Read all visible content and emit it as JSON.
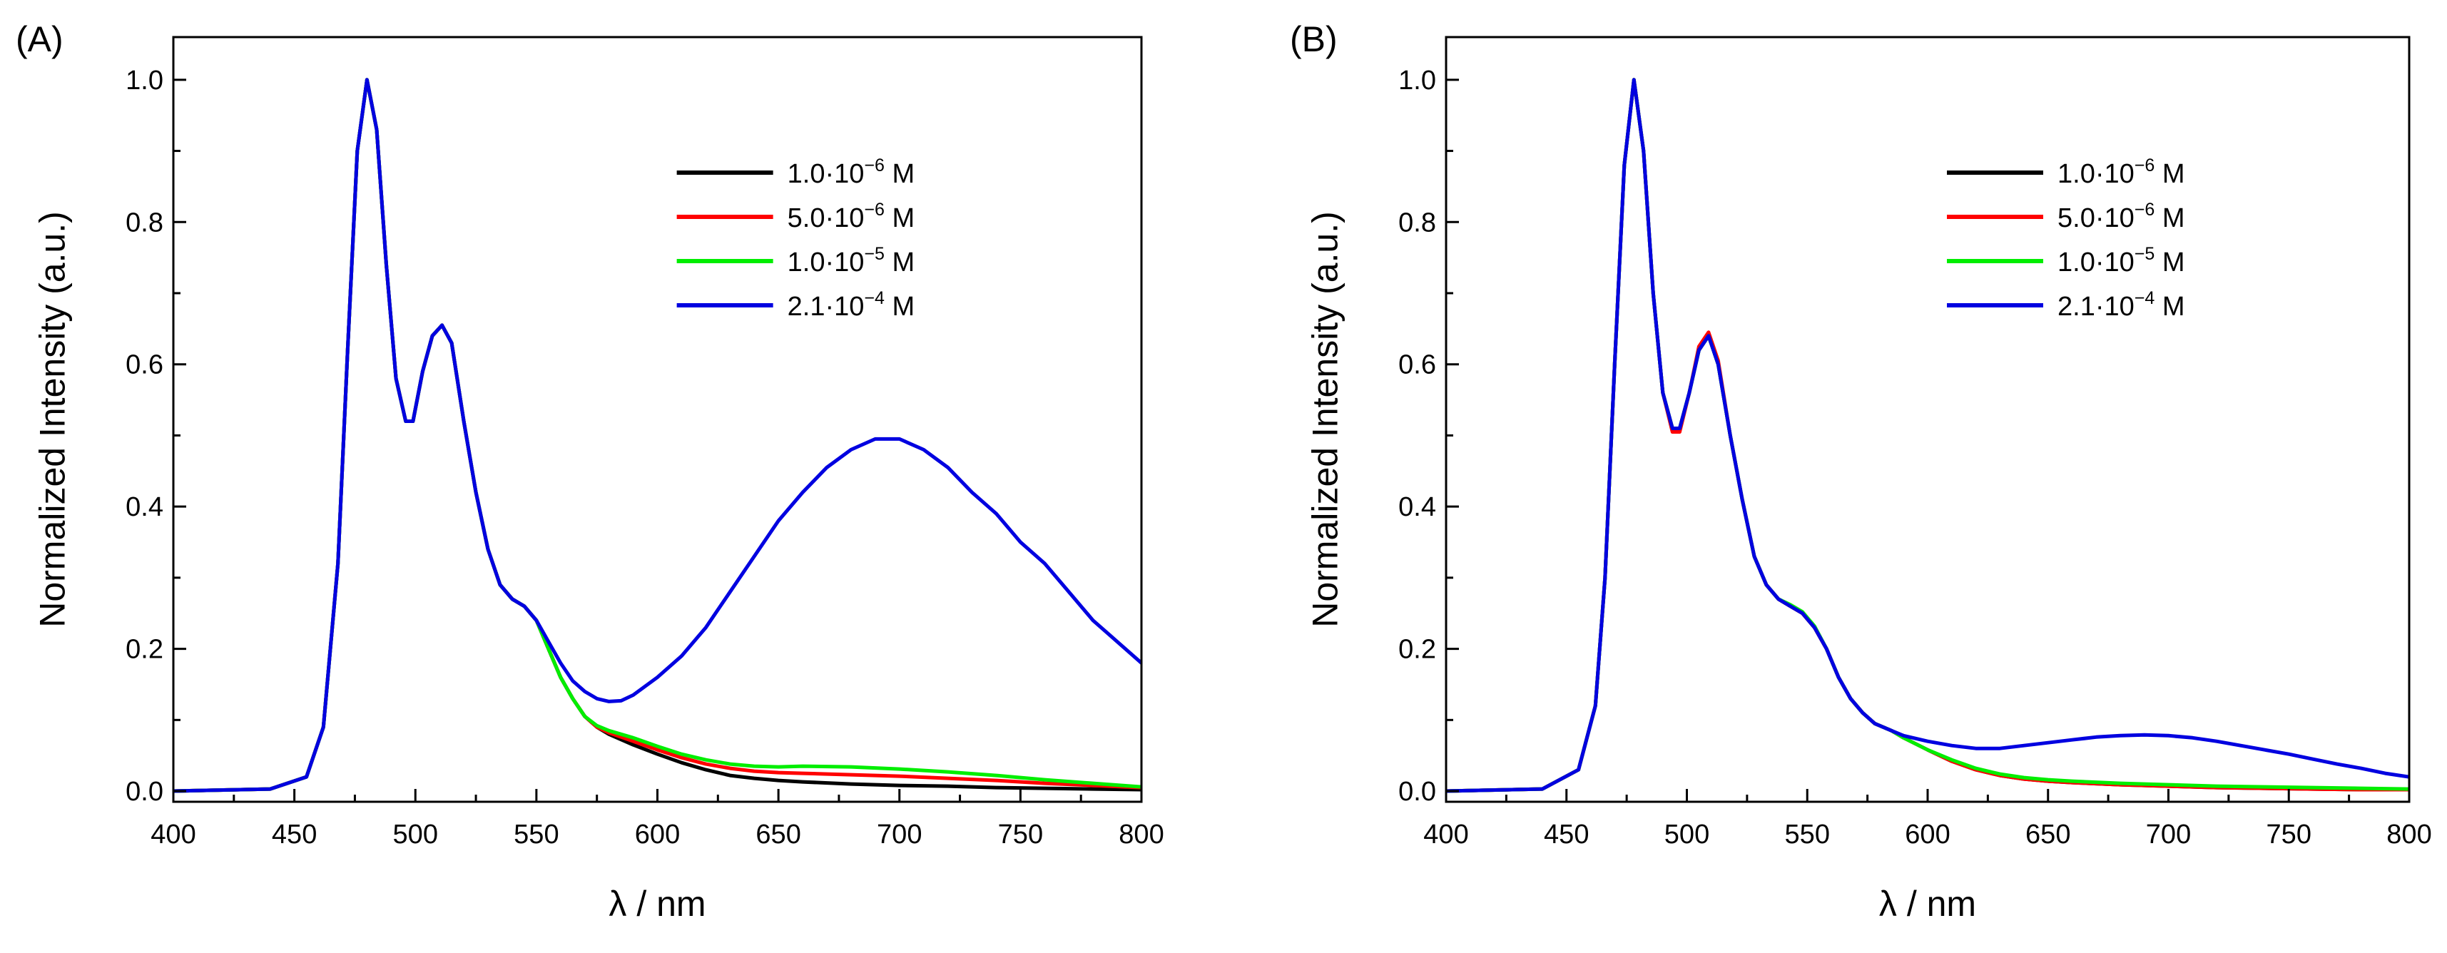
{
  "chart_data": [
    {
      "type": "line",
      "panel_label": "(A)",
      "xlabel": "λ / nm",
      "ylabel": "Normalized Intensity (a.u.)",
      "xlim": [
        400,
        800
      ],
      "ylim": [
        -0.015,
        1.06
      ],
      "xticks": [
        400,
        450,
        500,
        550,
        600,
        650,
        700,
        750,
        800
      ],
      "xtick_labels": [
        "400",
        "450",
        "500",
        "550",
        "600",
        "650",
        "700",
        "750",
        "800"
      ],
      "yticks": [
        0.0,
        0.2,
        0.4,
        0.6,
        0.8,
        1.0
      ],
      "ytick_labels": [
        "0.0",
        "0.2",
        "0.4",
        "0.6",
        "0.8",
        "1.0"
      ],
      "legend_position": "top-right",
      "series": [
        {
          "name": "1.0·10⁻⁶ M",
          "legend_mantissa": "1.0·10",
          "legend_exponent": "−6",
          "legend_unit": " M",
          "color": "#000000",
          "x": [
            400,
            440,
            455,
            462,
            468,
            472,
            476,
            480,
            484,
            488,
            492,
            496,
            499,
            503,
            507,
            511,
            515,
            520,
            525,
            530,
            535,
            540,
            545,
            550,
            555,
            560,
            565,
            570,
            575,
            580,
            590,
            600,
            610,
            620,
            630,
            640,
            650,
            660,
            680,
            700,
            720,
            740,
            760,
            780,
            800
          ],
          "y": [
            0.0,
            0.003,
            0.02,
            0.09,
            0.32,
            0.62,
            0.9,
            1.0,
            0.93,
            0.74,
            0.58,
            0.52,
            0.52,
            0.59,
            0.64,
            0.655,
            0.63,
            0.52,
            0.42,
            0.34,
            0.29,
            0.27,
            0.26,
            0.24,
            0.2,
            0.16,
            0.13,
            0.105,
            0.09,
            0.08,
            0.065,
            0.052,
            0.04,
            0.03,
            0.022,
            0.018,
            0.015,
            0.013,
            0.01,
            0.008,
            0.007,
            0.005,
            0.004,
            0.003,
            0.002
          ]
        },
        {
          "name": "5.0·10⁻⁶ M",
          "legend_mantissa": "5.0·10",
          "legend_exponent": "−6",
          "legend_unit": " M",
          "color": "#ff0000",
          "x": [
            400,
            440,
            455,
            462,
            468,
            472,
            476,
            480,
            484,
            488,
            492,
            496,
            499,
            503,
            507,
            511,
            515,
            520,
            525,
            530,
            535,
            540,
            545,
            550,
            555,
            560,
            565,
            570,
            575,
            580,
            590,
            600,
            610,
            620,
            630,
            640,
            650,
            660,
            680,
            700,
            720,
            740,
            760,
            780,
            800
          ],
          "y": [
            0.0,
            0.003,
            0.02,
            0.09,
            0.32,
            0.62,
            0.9,
            1.0,
            0.93,
            0.74,
            0.58,
            0.52,
            0.52,
            0.59,
            0.64,
            0.655,
            0.63,
            0.52,
            0.42,
            0.34,
            0.29,
            0.27,
            0.26,
            0.24,
            0.2,
            0.16,
            0.13,
            0.105,
            0.09,
            0.082,
            0.07,
            0.058,
            0.047,
            0.038,
            0.032,
            0.028,
            0.026,
            0.025,
            0.023,
            0.021,
            0.018,
            0.015,
            0.011,
            0.008,
            0.005
          ]
        },
        {
          "name": "1.0·10⁻⁵ M",
          "legend_mantissa": "1.0·10",
          "legend_exponent": "−5",
          "legend_unit": " M",
          "color": "#00ee00",
          "x": [
            400,
            440,
            455,
            462,
            468,
            472,
            476,
            480,
            484,
            488,
            492,
            496,
            499,
            503,
            507,
            511,
            515,
            520,
            525,
            530,
            535,
            540,
            545,
            550,
            555,
            560,
            565,
            570,
            575,
            580,
            590,
            600,
            610,
            620,
            630,
            640,
            650,
            660,
            680,
            700,
            720,
            740,
            760,
            780,
            800
          ],
          "y": [
            0.0,
            0.003,
            0.02,
            0.09,
            0.32,
            0.62,
            0.9,
            1.0,
            0.93,
            0.74,
            0.58,
            0.52,
            0.52,
            0.59,
            0.64,
            0.655,
            0.63,
            0.52,
            0.42,
            0.34,
            0.29,
            0.27,
            0.26,
            0.24,
            0.2,
            0.16,
            0.13,
            0.105,
            0.092,
            0.085,
            0.075,
            0.063,
            0.052,
            0.044,
            0.038,
            0.035,
            0.034,
            0.035,
            0.034,
            0.031,
            0.027,
            0.022,
            0.016,
            0.011,
            0.006
          ]
        },
        {
          "name": "2.1·10⁻⁴ M",
          "legend_mantissa": "2.1·10",
          "legend_exponent": "−4",
          "legend_unit": " M",
          "color": "#0000e0",
          "x": [
            400,
            440,
            455,
            462,
            468,
            472,
            476,
            480,
            484,
            488,
            492,
            496,
            499,
            503,
            507,
            511,
            515,
            520,
            525,
            530,
            535,
            540,
            545,
            550,
            555,
            560,
            565,
            570,
            575,
            580,
            585,
            590,
            600,
            610,
            620,
            630,
            640,
            650,
            660,
            670,
            680,
            690,
            700,
            710,
            720,
            730,
            740,
            750,
            760,
            770,
            780,
            790,
            800
          ],
          "y": [
            0.0,
            0.003,
            0.02,
            0.09,
            0.32,
            0.62,
            0.9,
            1.0,
            0.93,
            0.74,
            0.58,
            0.52,
            0.52,
            0.59,
            0.64,
            0.655,
            0.63,
            0.52,
            0.42,
            0.34,
            0.29,
            0.27,
            0.26,
            0.24,
            0.21,
            0.18,
            0.155,
            0.14,
            0.13,
            0.126,
            0.127,
            0.135,
            0.16,
            0.19,
            0.23,
            0.28,
            0.33,
            0.38,
            0.42,
            0.455,
            0.48,
            0.495,
            0.495,
            0.48,
            0.455,
            0.42,
            0.39,
            0.35,
            0.32,
            0.28,
            0.24,
            0.21,
            0.18
          ]
        }
      ]
    },
    {
      "type": "line",
      "panel_label": "(B)",
      "xlabel": "λ / nm",
      "ylabel": "Normalized Intensity (a.u.)",
      "xlim": [
        400,
        800
      ],
      "ylim": [
        -0.015,
        1.06
      ],
      "xticks": [
        400,
        450,
        500,
        550,
        600,
        650,
        700,
        750,
        800
      ],
      "xtick_labels": [
        "400",
        "450",
        "500",
        "550",
        "600",
        "650",
        "700",
        "750",
        "800"
      ],
      "yticks": [
        0.0,
        0.2,
        0.4,
        0.6,
        0.8,
        1.0
      ],
      "ytick_labels": [
        "0.0",
        "0.2",
        "0.4",
        "0.6",
        "0.8",
        "1.0"
      ],
      "legend_position": "top-right",
      "series": [
        {
          "name": "1.0·10⁻⁶ M",
          "legend_mantissa": "1.0·10",
          "legend_exponent": "−6",
          "legend_unit": " M",
          "color": "#000000",
          "x": [
            400,
            440,
            455,
            462,
            466,
            470,
            474,
            478,
            482,
            486,
            490,
            494,
            497,
            501,
            505,
            509,
            513,
            518,
            523,
            528,
            533,
            538,
            543,
            548,
            553,
            558,
            563,
            568,
            573,
            578,
            585,
            590,
            600,
            610,
            620,
            630,
            640,
            650,
            660,
            680,
            700,
            720,
            740,
            760,
            780,
            800
          ],
          "y": [
            0.0,
            0.003,
            0.03,
            0.12,
            0.3,
            0.6,
            0.88,
            1.0,
            0.9,
            0.7,
            0.56,
            0.51,
            0.51,
            0.56,
            0.62,
            0.64,
            0.6,
            0.5,
            0.41,
            0.33,
            0.29,
            0.27,
            0.26,
            0.25,
            0.23,
            0.2,
            0.16,
            0.13,
            0.11,
            0.095,
            0.085,
            0.075,
            0.058,
            0.042,
            0.03,
            0.022,
            0.017,
            0.014,
            0.012,
            0.009,
            0.007,
            0.005,
            0.004,
            0.003,
            0.002,
            0.002
          ]
        },
        {
          "name": "5.0·10⁻⁶ M",
          "legend_mantissa": "5.0·10",
          "legend_exponent": "−6",
          "legend_unit": " M",
          "color": "#ff0000",
          "x": [
            400,
            440,
            455,
            462,
            466,
            470,
            474,
            478,
            482,
            486,
            490,
            494,
            497,
            501,
            505,
            509,
            513,
            518,
            523,
            528,
            533,
            538,
            543,
            548,
            553,
            558,
            563,
            568,
            573,
            578,
            585,
            590,
            600,
            610,
            620,
            630,
            640,
            650,
            660,
            680,
            700,
            720,
            740,
            760,
            780,
            800
          ],
          "y": [
            0.0,
            0.003,
            0.03,
            0.12,
            0.3,
            0.6,
            0.88,
            1.0,
            0.9,
            0.7,
            0.56,
            0.505,
            0.505,
            0.56,
            0.625,
            0.645,
            0.605,
            0.5,
            0.41,
            0.33,
            0.29,
            0.27,
            0.26,
            0.25,
            0.23,
            0.2,
            0.16,
            0.13,
            0.11,
            0.095,
            0.085,
            0.075,
            0.058,
            0.042,
            0.03,
            0.022,
            0.017,
            0.014,
            0.012,
            0.009,
            0.007,
            0.005,
            0.004,
            0.003,
            0.002,
            0.002
          ]
        },
        {
          "name": "1.0·10⁻⁵ M",
          "legend_mantissa": "1.0·10",
          "legend_exponent": "−5",
          "legend_unit": " M",
          "color": "#00ee00",
          "x": [
            400,
            440,
            455,
            462,
            466,
            470,
            474,
            478,
            482,
            486,
            490,
            494,
            497,
            501,
            505,
            509,
            513,
            518,
            523,
            528,
            533,
            538,
            543,
            548,
            553,
            558,
            563,
            568,
            573,
            578,
            585,
            590,
            600,
            610,
            620,
            630,
            640,
            650,
            660,
            680,
            700,
            720,
            740,
            760,
            780,
            800
          ],
          "y": [
            0.0,
            0.003,
            0.03,
            0.12,
            0.3,
            0.6,
            0.88,
            1.0,
            0.9,
            0.7,
            0.56,
            0.51,
            0.51,
            0.56,
            0.62,
            0.64,
            0.6,
            0.5,
            0.41,
            0.33,
            0.29,
            0.27,
            0.262,
            0.252,
            0.232,
            0.2,
            0.16,
            0.13,
            0.11,
            0.095,
            0.085,
            0.075,
            0.058,
            0.044,
            0.032,
            0.024,
            0.019,
            0.016,
            0.014,
            0.011,
            0.009,
            0.007,
            0.006,
            0.005,
            0.004,
            0.003
          ]
        },
        {
          "name": "2.1·10⁻⁴ M",
          "legend_mantissa": "2.1·10",
          "legend_exponent": "−4",
          "legend_unit": " M",
          "color": "#0000e0",
          "x": [
            400,
            440,
            455,
            462,
            466,
            470,
            474,
            478,
            482,
            486,
            490,
            494,
            497,
            501,
            505,
            509,
            513,
            518,
            523,
            528,
            533,
            538,
            543,
            548,
            553,
            558,
            563,
            568,
            573,
            578,
            585,
            590,
            600,
            610,
            620,
            630,
            640,
            650,
            660,
            670,
            680,
            690,
            700,
            710,
            720,
            730,
            740,
            750,
            760,
            770,
            780,
            790,
            800
          ],
          "y": [
            0.0,
            0.003,
            0.03,
            0.12,
            0.3,
            0.6,
            0.88,
            1.0,
            0.9,
            0.7,
            0.56,
            0.51,
            0.51,
            0.56,
            0.62,
            0.64,
            0.6,
            0.5,
            0.41,
            0.33,
            0.29,
            0.27,
            0.26,
            0.25,
            0.23,
            0.2,
            0.16,
            0.13,
            0.11,
            0.095,
            0.085,
            0.078,
            0.07,
            0.064,
            0.06,
            0.06,
            0.064,
            0.068,
            0.072,
            0.076,
            0.078,
            0.079,
            0.078,
            0.075,
            0.07,
            0.064,
            0.058,
            0.052,
            0.045,
            0.038,
            0.032,
            0.025,
            0.02
          ]
        }
      ]
    }
  ]
}
